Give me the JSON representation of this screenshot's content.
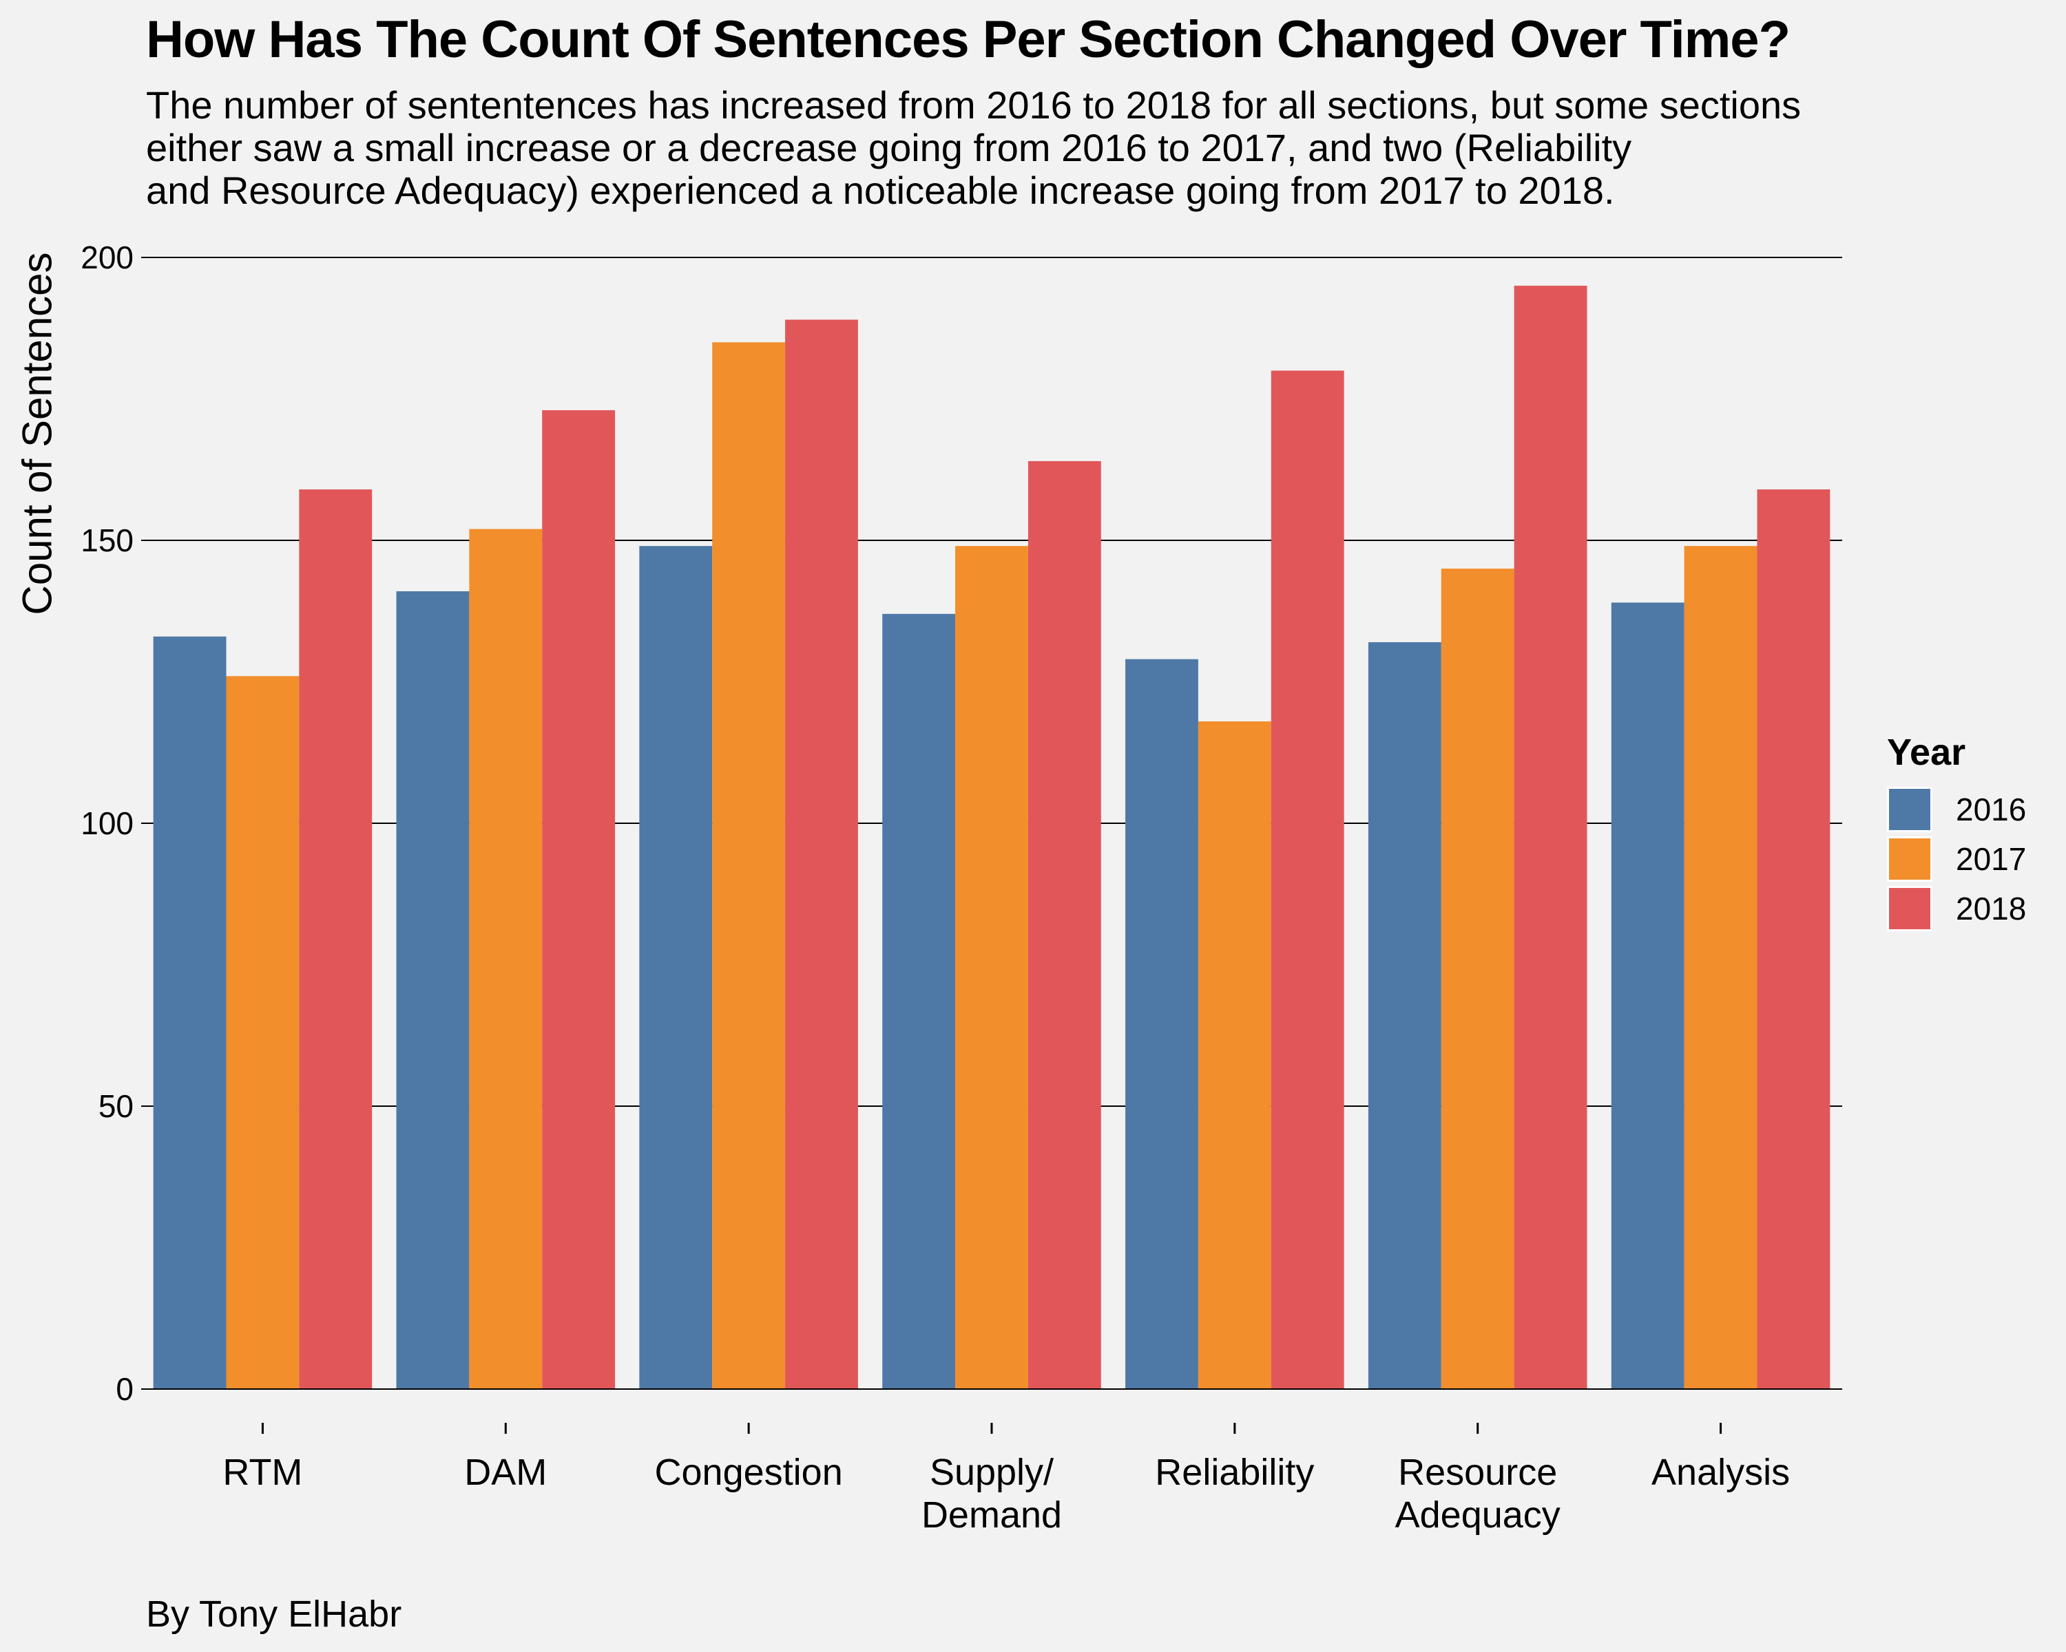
{
  "chart_data": {
    "type": "bar",
    "title": "How Has The Count Of Sentences Per Section Changed Over Time?",
    "subtitle_lines": [
      "The number of sententences has increased from 2016 to 2018 for all sections, but some sections",
      "either saw a small increase or a decrease going from 2016 to 2017, and two (Reliability",
      "and Resource Adequacy) experienced a noticeable increase going from 2017 to 2018."
    ],
    "caption": "By Tony ElHabr",
    "xlabel": "",
    "ylabel": "Count of Sentences",
    "ylim": [
      0,
      200
    ],
    "yticks": [
      0,
      50,
      100,
      150,
      200
    ],
    "grid": "horizontal major lines",
    "categories": [
      [
        "RTM"
      ],
      [
        "DAM"
      ],
      [
        "Congestion"
      ],
      [
        "Supply/",
        "Demand"
      ],
      [
        "Reliability"
      ],
      [
        "Resource",
        "Adequacy"
      ],
      [
        "Analysis"
      ]
    ],
    "legend": {
      "title": "Year",
      "position": "right"
    },
    "series": [
      {
        "name": "2016",
        "color": "#4e79a7",
        "values": [
          133,
          141,
          149,
          137,
          129,
          132,
          139
        ]
      },
      {
        "name": "2017",
        "color": "#f28e2b",
        "values": [
          126,
          152,
          185,
          149,
          118,
          145,
          149
        ]
      },
      {
        "name": "2018",
        "color": "#e15759",
        "values": [
          159,
          173,
          189,
          164,
          180,
          195,
          159
        ]
      }
    ]
  }
}
